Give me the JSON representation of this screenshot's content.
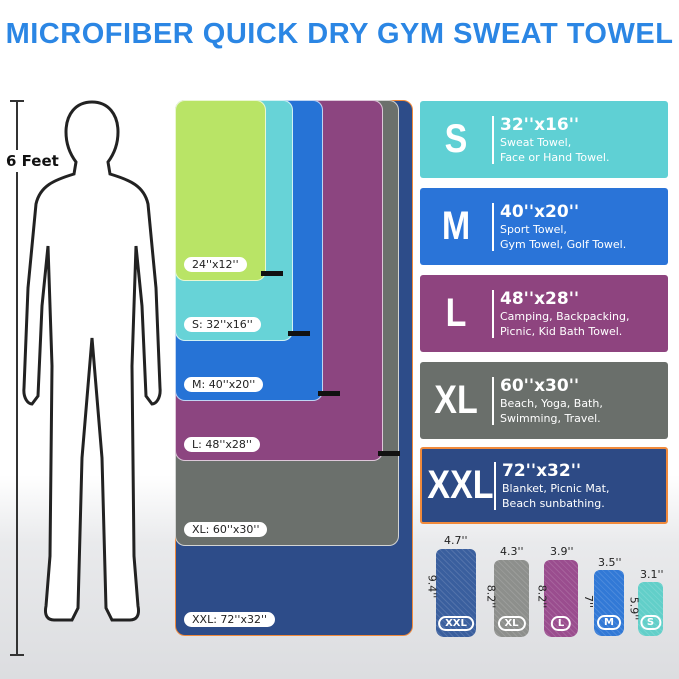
{
  "title": "MICROFIBER QUICK DRY GYM SWEAT TOWEL",
  "height_label": "6 Feet",
  "towels": [
    {
      "label": "XXL: 72''x32''",
      "color": "#2d4c89"
    },
    {
      "label": "XL: 60''x30''",
      "color": "#6b706c"
    },
    {
      "label": "L: 48''x28''",
      "color": "#8c4580"
    },
    {
      "label": "M: 40''x20''",
      "color": "#2673d6"
    },
    {
      "label": "S: 32''x16''",
      "color": "#67d3d7"
    },
    {
      "label": "24''x12''",
      "color": "#b9e466"
    }
  ],
  "cards": [
    {
      "size": "S",
      "dims": "32''x16''",
      "use1": "Sweat Towel,",
      "use2": "Face or Hand Towel.",
      "color": "#5fd0d4"
    },
    {
      "size": "M",
      "dims": "40''x20''",
      "use1": "Sport Towel,",
      "use2": "Gym Towel, Golf Towel.",
      "color": "#2a74d8"
    },
    {
      "size": "L",
      "dims": "48''x28''",
      "use1": "Camping, Backpacking,",
      "use2": "Picnic, Kid Bath Towel.",
      "color": "#8e447f"
    },
    {
      "size": "XL",
      "dims": "60''x30''",
      "use1": "Beach, Yoga, Bath,",
      "use2": "Swimming, Travel.",
      "color": "#6a6f6b"
    },
    {
      "size": "XXL",
      "dims": "72''x32''",
      "use1": "Blanket, Picnic Mat,",
      "use2": "Beach sunbathing.",
      "color": "#2d4a85"
    }
  ],
  "rolls": [
    {
      "badge": "XXL",
      "width": "4.7''",
      "height": "9.4''",
      "color": "#3a5f9e"
    },
    {
      "badge": "XL",
      "width": "4.3''",
      "height": "8.2''",
      "color": "#8d8f8c"
    },
    {
      "badge": "L",
      "width": "3.9''",
      "height": "8.2''",
      "color": "#9a4d8e"
    },
    {
      "badge": "M",
      "width": "3.5''",
      "height": "7''",
      "color": "#3279d6"
    },
    {
      "badge": "S",
      "width": "3.1''",
      "height": "5.9''",
      "color": "#62cfc9"
    }
  ]
}
